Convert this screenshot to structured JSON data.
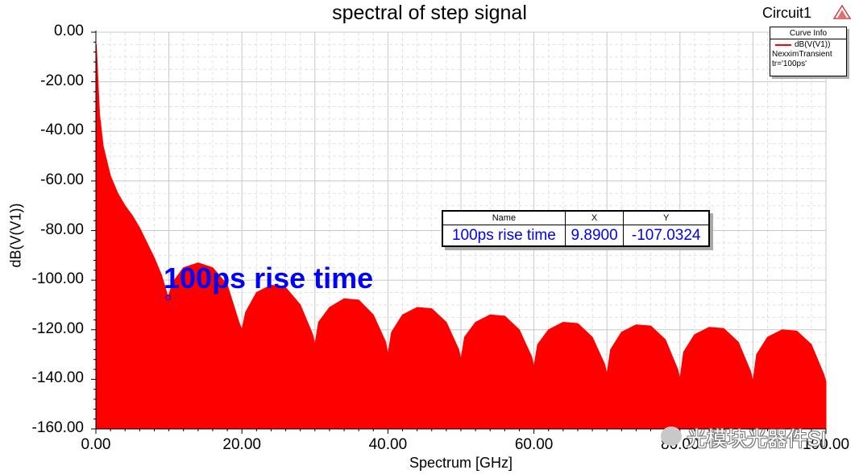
{
  "header": {
    "title": "spectral of step signal",
    "circuit_label": "Circuit1"
  },
  "legend": {
    "title": "Curve Info",
    "series_label": "dB(V(V1))",
    "line1": "NexximTransient",
    "line2": "tr='100ps'"
  },
  "marker_table": {
    "headers": [
      "Name",
      "X",
      "Y"
    ],
    "row": {
      "name": "100ps rise time",
      "x": "9.8900",
      "y": "-107.0324"
    }
  },
  "annotation": "100ps rise time",
  "watermark": "光模块光器件SI",
  "colors": {
    "series": "#ff0000",
    "marker": "#0000ff",
    "grid": "#c8c8c8"
  },
  "chart_data": {
    "type": "area",
    "title": "spectral of step signal",
    "xlabel": "Spectrum [GHz]",
    "ylabel": "dB(V(V1))",
    "xlim": [
      0,
      100
    ],
    "ylim": [
      -160,
      0
    ],
    "x_ticks": [
      "0.00",
      "20.00",
      "40.00",
      "60.00",
      "80.00",
      "100.00"
    ],
    "y_ticks": [
      "0.00",
      "-20.00",
      "-40.00",
      "-60.00",
      "-80.00",
      "-100.00",
      "-120.00",
      "-140.00",
      "-160.00"
    ],
    "grid": true,
    "legend_position": "top-right",
    "series": [
      {
        "name": "dB(V(V1))",
        "color": "#ff0000",
        "envelope_x": [
          0.05,
          0.5,
          1,
          2,
          3,
          4,
          5,
          6,
          7,
          8,
          9,
          9.9,
          10.5,
          12,
          14,
          16,
          18,
          19.6,
          20,
          20.5,
          22,
          24,
          26,
          28,
          29.7,
          30,
          30.5,
          32,
          34,
          36,
          38,
          39.7,
          40,
          40.5,
          42,
          44,
          46,
          48,
          49.7,
          50,
          50.5,
          52,
          54,
          56,
          58,
          59.7,
          60,
          60.5,
          62,
          64,
          66,
          68,
          69.7,
          70,
          70.5,
          72,
          74,
          76,
          78,
          79.7,
          80,
          80.5,
          82,
          84,
          86,
          88,
          89.7,
          90,
          90.5,
          92,
          94,
          96,
          98,
          99.7,
          100
        ],
        "envelope_y": [
          -5,
          -33,
          -46,
          -58,
          -65,
          -70,
          -74,
          -79,
          -85,
          -91,
          -98,
          -107,
          -101,
          -95,
          -93,
          -95,
          -102,
          -117,
          -120,
          -113,
          -105,
          -102,
          -103,
          -110,
          -122,
          -126,
          -117,
          -111,
          -107.5,
          -108,
          -114,
          -125,
          -130,
          -121,
          -114,
          -111,
          -111.5,
          -117,
          -128,
          -132,
          -123,
          -117,
          -114,
          -114.5,
          -120,
          -131,
          -135,
          -126,
          -120,
          -117,
          -117.5,
          -123,
          -134,
          -138,
          -128,
          -121,
          -118,
          -118.5,
          -124,
          -136,
          -140,
          -129,
          -122,
          -119,
          -119.5,
          -125,
          -137,
          -141,
          -130,
          -123,
          -120,
          -120.5,
          -126,
          -138,
          -141
        ],
        "bottom": -160
      }
    ],
    "markers": [
      {
        "name": "100ps rise time",
        "x": 9.89,
        "y": -107.0324
      }
    ]
  }
}
